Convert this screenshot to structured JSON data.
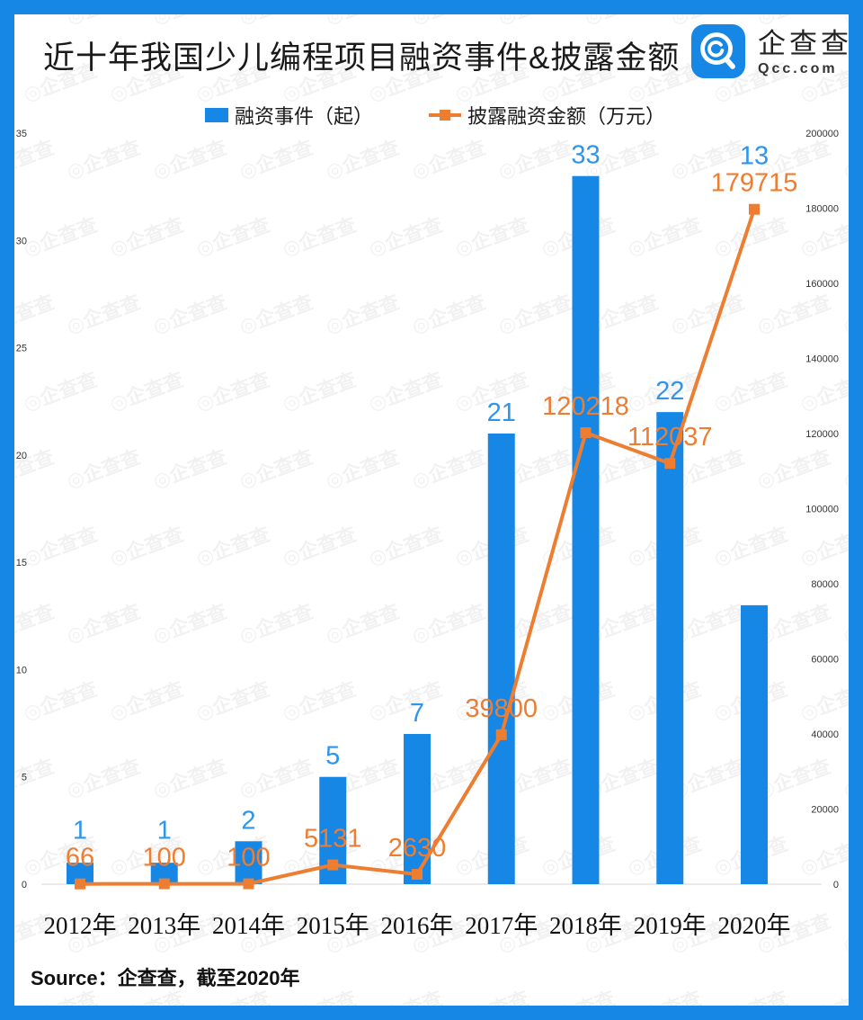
{
  "header": {
    "title": "近十年我国少儿编程项目融资事件&披露金额",
    "logo_text": "企查查",
    "logo_domain": "Qcc.com"
  },
  "legend": {
    "items": [
      {
        "label": "融资事件（起）",
        "type": "bar"
      },
      {
        "label": "披露融资金额（万元）",
        "type": "line"
      }
    ]
  },
  "source_note": "Source：企查查，截至2020年",
  "watermark": {
    "icon": "◎",
    "text": "企查查"
  },
  "colors": {
    "bar": "#1787e6",
    "bar_label": "#2f95ea",
    "line": "#ed7d31",
    "border": "#1787e6",
    "baseline": "#e3e3e3",
    "tick_text": "#333333",
    "year_text": "#111111",
    "title_text": "#1a1a1a"
  },
  "chart_data": {
    "type": "bar+line",
    "categories": [
      "2012年",
      "2013年",
      "2014年",
      "2015年",
      "2016年",
      "2017年",
      "2018年",
      "2019年",
      "2020年"
    ],
    "series": [
      {
        "name": "融资事件（起）",
        "type": "bar",
        "axis": "left",
        "values": [
          1,
          1,
          2,
          5,
          7,
          21,
          33,
          22,
          13
        ]
      },
      {
        "name": "披露融资金额（万元）",
        "type": "line",
        "axis": "right",
        "values": [
          66,
          100,
          100,
          5131,
          2630,
          39800,
          120218,
          112037,
          179715
        ]
      }
    ],
    "left_axis": {
      "min": 0,
      "max": 35,
      "ticks": [
        0,
        5,
        10,
        15,
        20,
        25,
        30,
        35
      ]
    },
    "right_axis": {
      "min": 0,
      "max": 200000,
      "ticks": [
        0,
        20000,
        40000,
        60000,
        80000,
        100000,
        120000,
        140000,
        160000,
        180000,
        200000
      ]
    },
    "grid": "baseline-only",
    "legend_position": "top-center",
    "data_labels": true
  }
}
